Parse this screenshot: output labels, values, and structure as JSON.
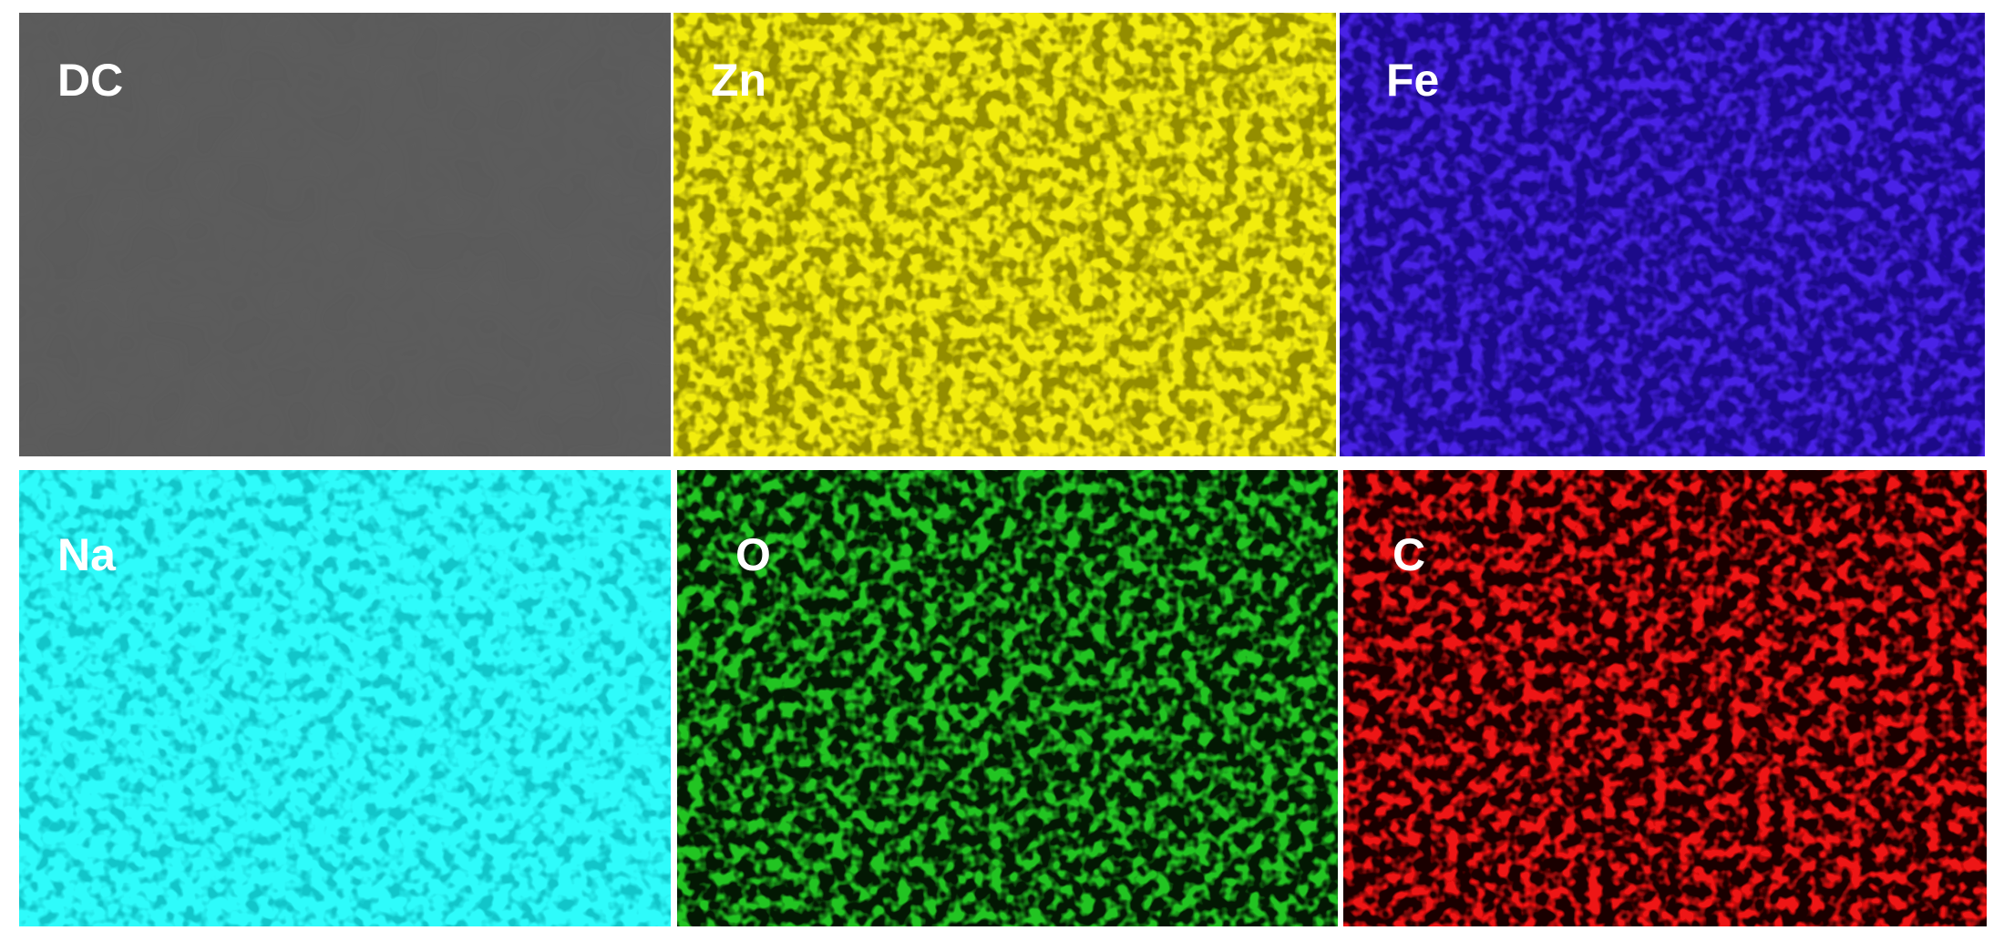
{
  "panels": [
    {
      "label": "DC"
    },
    {
      "label": "Zn"
    },
    {
      "label": "Fe"
    },
    {
      "label": "Na"
    },
    {
      "label": "O"
    },
    {
      "label": "C"
    }
  ]
}
